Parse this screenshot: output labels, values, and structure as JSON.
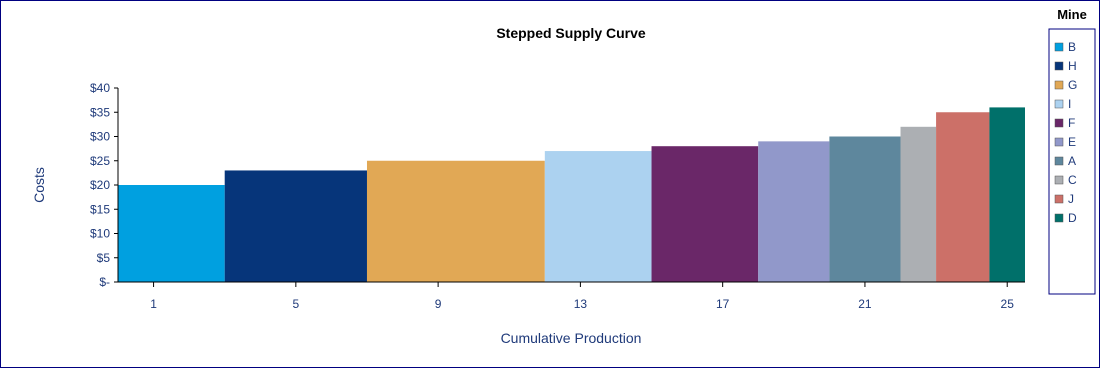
{
  "chart_data": {
    "type": "bar",
    "title": "Stepped Supply Curve",
    "xlabel": "Cumulative Production",
    "ylabel": "Costs",
    "ylim": [
      0,
      40
    ],
    "yticks": [
      0,
      5,
      10,
      15,
      20,
      25,
      30,
      35,
      40
    ],
    "ytick_labels": [
      "$-",
      "$5",
      "$10",
      "$15",
      "$20",
      "$25",
      "$30",
      "$35",
      "$40"
    ],
    "xlim": [
      0,
      25.5
    ],
    "xticks": [
      1,
      5,
      9,
      13,
      17,
      21,
      25
    ],
    "xtick_labels": [
      "1",
      "5",
      "9",
      "13",
      "17",
      "21",
      "25"
    ],
    "grid": false,
    "legend_title": "Mine",
    "legend_position": "right",
    "series": [
      {
        "name": "B",
        "x_start": 0,
        "x_end": 3,
        "value": 20,
        "color": "#00a0e0"
      },
      {
        "name": "H",
        "x_start": 3,
        "x_end": 7,
        "value": 23,
        "color": "#06357a"
      },
      {
        "name": "G",
        "x_start": 7,
        "x_end": 12,
        "value": 25,
        "color": "#e1a855"
      },
      {
        "name": "I",
        "x_start": 12,
        "x_end": 15,
        "value": 27,
        "color": "#acd2f0"
      },
      {
        "name": "F",
        "x_start": 15,
        "x_end": 18,
        "value": 28,
        "color": "#6a2768"
      },
      {
        "name": "E",
        "x_start": 18,
        "x_end": 20,
        "value": 29,
        "color": "#9198ca"
      },
      {
        "name": "A",
        "x_start": 20,
        "x_end": 22,
        "value": 30,
        "color": "#5e879d"
      },
      {
        "name": "C",
        "x_start": 22,
        "x_end": 23,
        "value": 32,
        "color": "#acafb3"
      },
      {
        "name": "J",
        "x_start": 23,
        "x_end": 24.5,
        "value": 35,
        "color": "#cc7068"
      },
      {
        "name": "D",
        "x_start": 24.5,
        "x_end": 25.5,
        "value": 36,
        "color": "#00706a"
      }
    ]
  }
}
